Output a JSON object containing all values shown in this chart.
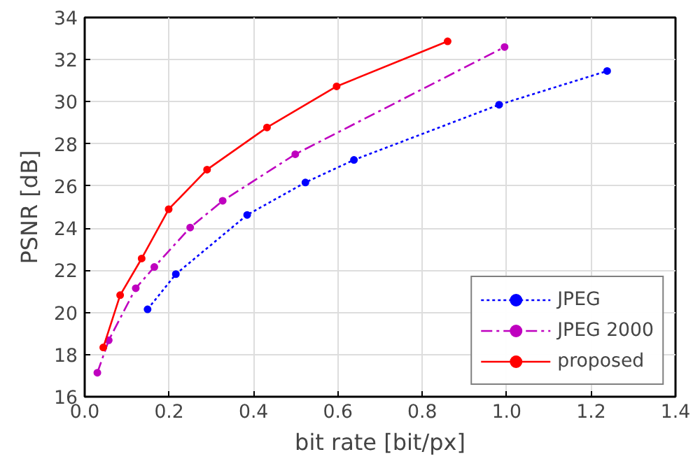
{
  "chart_data": {
    "type": "line",
    "xlabel": "bit rate [bit/px]",
    "ylabel": "PSNR [dB]",
    "xlim": [
      0,
      1.4
    ],
    "ylim": [
      16,
      34
    ],
    "xticks": [
      {
        "value": 0,
        "label": "0.0"
      },
      {
        "value": 0.2,
        "label": "0.2"
      },
      {
        "value": 0.4,
        "label": "0.4"
      },
      {
        "value": 0.6,
        "label": "0.6"
      },
      {
        "value": 0.8,
        "label": "0.8"
      },
      {
        "value": 1.0,
        "label": "1.0"
      },
      {
        "value": 1.2,
        "label": "1.2"
      },
      {
        "value": 1.4,
        "label": "1.4"
      }
    ],
    "yticks": [
      16,
      18,
      20,
      22,
      24,
      26,
      28,
      30,
      32,
      34
    ],
    "grid": true,
    "legend": "bottom right",
    "marker": "circle",
    "series": [
      {
        "name": "JPEG",
        "color": "#0000ff",
        "line_style": "dotted",
        "x": [
          0.149,
          0.216,
          0.385,
          0.523,
          0.638,
          0.982,
          1.238
        ],
        "values": [
          20.15,
          21.82,
          24.63,
          26.17,
          27.24,
          29.86,
          31.46
        ]
      },
      {
        "name": "JPEG 2000",
        "color": "#bf00bf",
        "line_style": "dashed",
        "x": [
          0.03,
          0.057,
          0.121,
          0.165,
          0.25,
          0.327,
          0.499,
          0.995
        ],
        "values": [
          17.14,
          18.68,
          21.15,
          22.16,
          24.03,
          25.3,
          27.51,
          32.6
        ]
      },
      {
        "name": "proposed",
        "color": "#ff0000",
        "line_style": "solid",
        "x": [
          0.044,
          0.084,
          0.135,
          0.199,
          0.29,
          0.432,
          0.597,
          0.86
        ],
        "values": [
          18.34,
          20.82,
          22.56,
          24.9,
          26.78,
          28.78,
          30.73,
          32.87
        ]
      }
    ]
  }
}
